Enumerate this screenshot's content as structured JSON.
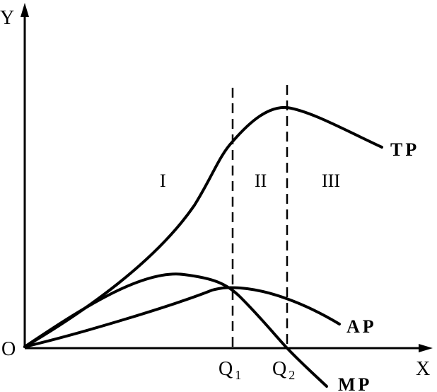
{
  "axes": {
    "y_label": "Y",
    "x_label": "X",
    "origin_label": "O"
  },
  "ticks": {
    "q1": {
      "letter": "Q",
      "sub": "1"
    },
    "q2": {
      "letter": "Q",
      "sub": "2"
    }
  },
  "regions": {
    "r1": "I",
    "r2": "II",
    "r3": "III"
  },
  "curves": {
    "tp": "TP",
    "ap": "AP",
    "mp": "MP"
  },
  "colors": {
    "ink": "#000000",
    "background": "#ffffff"
  }
}
